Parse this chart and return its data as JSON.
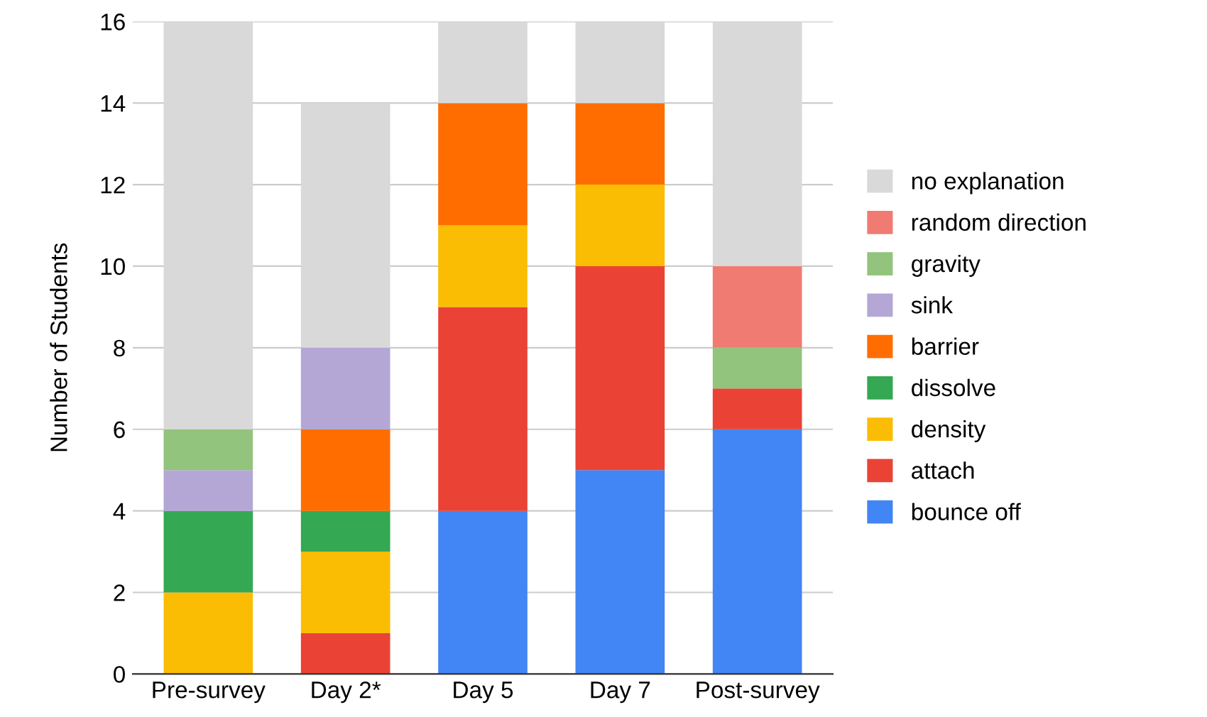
{
  "chart_data": {
    "type": "bar",
    "stacked": true,
    "ylabel": "Number of Students",
    "categories": [
      "Pre-survey",
      "Day 2*",
      "Day 5",
      "Day 7",
      "Post-survey"
    ],
    "series": [
      {
        "name": "bounce off",
        "color": "#4285f4",
        "values": [
          0,
          0,
          4,
          5,
          6
        ]
      },
      {
        "name": "attach",
        "color": "#ea4335",
        "values": [
          0,
          1,
          5,
          5,
          1
        ]
      },
      {
        "name": "density",
        "color": "#fbbc04",
        "values": [
          2,
          2,
          2,
          2,
          0
        ]
      },
      {
        "name": "dissolve",
        "color": "#34a853",
        "values": [
          2,
          1,
          0,
          0,
          0
        ]
      },
      {
        "name": "barrier",
        "color": "#ff6d01",
        "values": [
          0,
          2,
          3,
          2,
          0
        ]
      },
      {
        "name": "sink",
        "color": "#b4a7d6",
        "values": [
          1,
          2,
          0,
          0,
          0
        ]
      },
      {
        "name": "gravity",
        "color": "#93c47d",
        "values": [
          1,
          0,
          0,
          0,
          1
        ]
      },
      {
        "name": "random direction",
        "color": "#f07b72",
        "values": [
          0,
          0,
          0,
          0,
          2
        ]
      },
      {
        "name": "no explanation",
        "color": "#d9d9d9",
        "values": [
          10,
          6,
          2,
          2,
          6
        ]
      }
    ],
    "ylim": [
      0,
      16
    ],
    "yticks": [
      0,
      2,
      4,
      6,
      8,
      10,
      12,
      14,
      16
    ],
    "grid": "y",
    "legend": "right"
  }
}
